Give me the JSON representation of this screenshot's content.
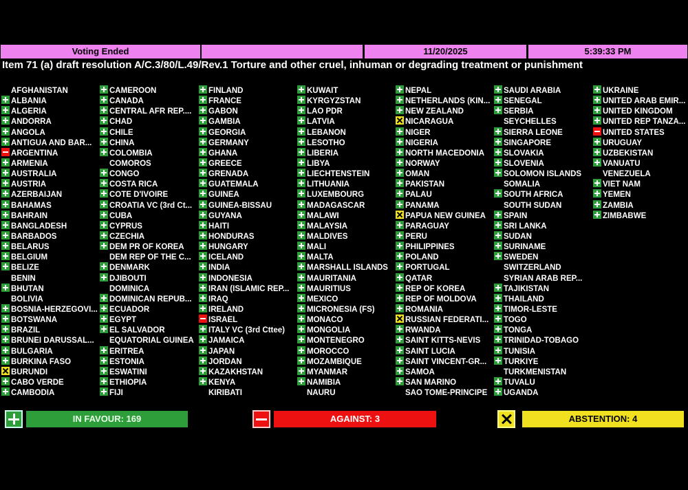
{
  "header": {
    "status": "Voting Ended",
    "blank": "",
    "date": "11/20/2025",
    "time": "5:39:33 PM"
  },
  "title": "Item 71 (a) draft resolution A/C.3/80/L.49/Rev.1 Torture and other cruel, inhuman or degrading treatment or punishment",
  "columns": [
    [
      [
        "AFGHANISTAN",
        "none"
      ],
      [
        "ALBANIA",
        "yes"
      ],
      [
        "ALGERIA",
        "yes"
      ],
      [
        "ANDORRA",
        "yes"
      ],
      [
        "ANGOLA",
        "yes"
      ],
      [
        "ANTIGUA AND BAR...",
        "yes"
      ],
      [
        "ARGENTINA",
        "no"
      ],
      [
        "ARMENIA",
        "yes"
      ],
      [
        "AUSTRALIA",
        "yes"
      ],
      [
        "AUSTRIA",
        "yes"
      ],
      [
        "AZERBAIJAN",
        "yes"
      ],
      [
        "BAHAMAS",
        "yes"
      ],
      [
        "BAHRAIN",
        "yes"
      ],
      [
        "BANGLADESH",
        "yes"
      ],
      [
        "BARBADOS",
        "yes"
      ],
      [
        "BELARUS",
        "yes"
      ],
      [
        "BELGIUM",
        "yes"
      ],
      [
        "BELIZE",
        "yes"
      ],
      [
        "BENIN",
        "none"
      ],
      [
        "BHUTAN",
        "yes"
      ],
      [
        "BOLIVIA",
        "none"
      ],
      [
        "BOSNIA-HERZEGOVI...",
        "yes"
      ],
      [
        "BOTSWANA",
        "yes"
      ],
      [
        "BRAZIL",
        "yes"
      ],
      [
        "BRUNEI DARUSSAL...",
        "yes"
      ],
      [
        "BULGARIA",
        "yes"
      ],
      [
        "BURKINA FASO",
        "yes"
      ],
      [
        "BURUNDI",
        "abs"
      ],
      [
        "CABO VERDE",
        "yes"
      ],
      [
        "CAMBODIA",
        "yes"
      ]
    ],
    [
      [
        "CAMEROON",
        "yes"
      ],
      [
        "CANADA",
        "yes"
      ],
      [
        "CENTRAL AFR REP....",
        "yes"
      ],
      [
        "CHAD",
        "yes"
      ],
      [
        "CHILE",
        "yes"
      ],
      [
        "CHINA",
        "yes"
      ],
      [
        "COLOMBIA",
        "yes"
      ],
      [
        "COMOROS",
        "none"
      ],
      [
        "CONGO",
        "yes"
      ],
      [
        "COSTA RICA",
        "yes"
      ],
      [
        "COTE D'IVOIRE",
        "yes"
      ],
      [
        "CROATIA VC (3rd Ct...",
        "yes"
      ],
      [
        "CUBA",
        "yes"
      ],
      [
        "CYPRUS",
        "yes"
      ],
      [
        "CZECHIA",
        "yes"
      ],
      [
        "DEM PR OF KOREA",
        "yes"
      ],
      [
        "DEM REP OF THE C...",
        "none"
      ],
      [
        "DENMARK",
        "yes"
      ],
      [
        "DJIBOUTI",
        "yes"
      ],
      [
        "DOMINICA",
        "none"
      ],
      [
        "DOMINICAN REPUB...",
        "yes"
      ],
      [
        "ECUADOR",
        "yes"
      ],
      [
        "EGYPT",
        "yes"
      ],
      [
        "EL SALVADOR",
        "yes"
      ],
      [
        "EQUATORIAL GUINEA",
        "none"
      ],
      [
        "ERITREA",
        "yes"
      ],
      [
        "ESTONIA",
        "yes"
      ],
      [
        "ESWATINI",
        "yes"
      ],
      [
        "ETHIOPIA",
        "yes"
      ],
      [
        "FIJI",
        "yes"
      ]
    ],
    [
      [
        "FINLAND",
        "yes"
      ],
      [
        "FRANCE",
        "yes"
      ],
      [
        "GABON",
        "yes"
      ],
      [
        "GAMBIA",
        "yes"
      ],
      [
        "GEORGIA",
        "yes"
      ],
      [
        "GERMANY",
        "yes"
      ],
      [
        "GHANA",
        "yes"
      ],
      [
        "GREECE",
        "yes"
      ],
      [
        "GRENADA",
        "yes"
      ],
      [
        "GUATEMALA",
        "yes"
      ],
      [
        "GUINEA",
        "yes"
      ],
      [
        "GUINEA-BISSAU",
        "yes"
      ],
      [
        "GUYANA",
        "yes"
      ],
      [
        "HAITI",
        "yes"
      ],
      [
        "HONDURAS",
        "yes"
      ],
      [
        "HUNGARY",
        "yes"
      ],
      [
        "ICELAND",
        "yes"
      ],
      [
        "INDIA",
        "yes"
      ],
      [
        "INDONESIA",
        "yes"
      ],
      [
        "IRAN (ISLAMIC REP...",
        "yes"
      ],
      [
        "IRAQ",
        "yes"
      ],
      [
        "IRELAND",
        "yes"
      ],
      [
        "ISRAEL",
        "no"
      ],
      [
        "ITALY VC (3rd Cttee)",
        "yes"
      ],
      [
        "JAMAICA",
        "yes"
      ],
      [
        "JAPAN",
        "yes"
      ],
      [
        "JORDAN",
        "yes"
      ],
      [
        "KAZAKHSTAN",
        "yes"
      ],
      [
        "KENYA",
        "yes"
      ],
      [
        "KIRIBATI",
        "none"
      ]
    ],
    [
      [
        "KUWAIT",
        "yes"
      ],
      [
        "KYRGYZSTAN",
        "yes"
      ],
      [
        "LAO PDR",
        "yes"
      ],
      [
        "LATVIA",
        "yes"
      ],
      [
        "LEBANON",
        "yes"
      ],
      [
        "LESOTHO",
        "yes"
      ],
      [
        "LIBERIA",
        "yes"
      ],
      [
        "LIBYA",
        "yes"
      ],
      [
        "LIECHTENSTEIN",
        "yes"
      ],
      [
        "LITHUANIA",
        "yes"
      ],
      [
        "LUXEMBOURG",
        "yes"
      ],
      [
        "MADAGASCAR",
        "yes"
      ],
      [
        "MALAWI",
        "yes"
      ],
      [
        "MALAYSIA",
        "yes"
      ],
      [
        "MALDIVES",
        "yes"
      ],
      [
        "MALI",
        "yes"
      ],
      [
        "MALTA",
        "yes"
      ],
      [
        "MARSHALL ISLANDS",
        "yes"
      ],
      [
        "MAURITANIA",
        "yes"
      ],
      [
        "MAURITIUS",
        "yes"
      ],
      [
        "MEXICO",
        "yes"
      ],
      [
        "MICRONESIA (FS)",
        "yes"
      ],
      [
        "MONACO",
        "yes"
      ],
      [
        "MONGOLIA",
        "yes"
      ],
      [
        "MONTENEGRO",
        "yes"
      ],
      [
        "MOROCCO",
        "yes"
      ],
      [
        "MOZAMBIQUE",
        "yes"
      ],
      [
        "MYANMAR",
        "yes"
      ],
      [
        "NAMIBIA",
        "yes"
      ],
      [
        "NAURU",
        "none"
      ]
    ],
    [
      [
        "NEPAL",
        "yes"
      ],
      [
        "NETHERLANDS (KIN...",
        "yes"
      ],
      [
        "NEW ZEALAND",
        "yes"
      ],
      [
        "NICARAGUA",
        "abs"
      ],
      [
        "NIGER",
        "yes"
      ],
      [
        "NIGERIA",
        "yes"
      ],
      [
        "NORTH MACEDONIA",
        "yes"
      ],
      [
        "NORWAY",
        "yes"
      ],
      [
        "OMAN",
        "yes"
      ],
      [
        "PAKISTAN",
        "yes"
      ],
      [
        "PALAU",
        "yes"
      ],
      [
        "PANAMA",
        "yes"
      ],
      [
        "PAPUA NEW GUINEA",
        "abs"
      ],
      [
        "PARAGUAY",
        "yes"
      ],
      [
        "PERU",
        "yes"
      ],
      [
        "PHILIPPINES",
        "yes"
      ],
      [
        "POLAND",
        "yes"
      ],
      [
        "PORTUGAL",
        "yes"
      ],
      [
        "QATAR",
        "yes"
      ],
      [
        "REP OF KOREA",
        "yes"
      ],
      [
        "REP OF MOLDOVA",
        "yes"
      ],
      [
        "ROMANIA",
        "yes"
      ],
      [
        "RUSSIAN FEDERATI...",
        "abs"
      ],
      [
        "RWANDA",
        "yes"
      ],
      [
        "SAINT KITTS-NEVIS",
        "yes"
      ],
      [
        "SAINT LUCIA",
        "yes"
      ],
      [
        "SAINT VINCENT-GR...",
        "yes"
      ],
      [
        "SAMOA",
        "yes"
      ],
      [
        "SAN MARINO",
        "yes"
      ],
      [
        "SAO TOME-PRINCIPE",
        "none"
      ]
    ],
    [
      [
        "SAUDI ARABIA",
        "yes"
      ],
      [
        "SENEGAL",
        "yes"
      ],
      [
        "SERBIA",
        "yes"
      ],
      [
        "SEYCHELLES",
        "none"
      ],
      [
        "SIERRA LEONE",
        "yes"
      ],
      [
        "SINGAPORE",
        "yes"
      ],
      [
        "SLOVAKIA",
        "yes"
      ],
      [
        "SLOVENIA",
        "yes"
      ],
      [
        "SOLOMON ISLANDS",
        "yes"
      ],
      [
        "SOMALIA",
        "none"
      ],
      [
        "SOUTH AFRICA",
        "yes"
      ],
      [
        "SOUTH SUDAN",
        "none"
      ],
      [
        "SPAIN",
        "yes"
      ],
      [
        "SRI LANKA",
        "yes"
      ],
      [
        "SUDAN",
        "yes"
      ],
      [
        "SURINAME",
        "yes"
      ],
      [
        "SWEDEN",
        "yes"
      ],
      [
        "SWITZERLAND",
        "none"
      ],
      [
        "SYRIAN ARAB REP...",
        "none"
      ],
      [
        "TAJIKISTAN",
        "yes"
      ],
      [
        "THAILAND",
        "yes"
      ],
      [
        "TIMOR-LESTE",
        "yes"
      ],
      [
        "TOGO",
        "yes"
      ],
      [
        "TONGA",
        "yes"
      ],
      [
        "TRINIDAD-TOBAGO",
        "yes"
      ],
      [
        "TUNISIA",
        "yes"
      ],
      [
        "TURKIYE",
        "yes"
      ],
      [
        "TURKMENISTAN",
        "none"
      ],
      [
        "TUVALU",
        "yes"
      ],
      [
        "UGANDA",
        "yes"
      ]
    ],
    [
      [
        "UKRAINE",
        "yes"
      ],
      [
        "UNITED ARAB EMIR...",
        "yes"
      ],
      [
        "UNITED KINGDOM",
        "yes"
      ],
      [
        "UNITED REP TANZA...",
        "yes"
      ],
      [
        "UNITED STATES",
        "no"
      ],
      [
        "URUGUAY",
        "yes"
      ],
      [
        "UZBEKISTAN",
        "yes"
      ],
      [
        "VANUATU",
        "yes"
      ],
      [
        "VENEZUELA",
        "none"
      ],
      [
        "VIET NAM",
        "yes"
      ],
      [
        "YEMEN",
        "yes"
      ],
      [
        "ZAMBIA",
        "yes"
      ],
      [
        "ZIMBABWE",
        "yes"
      ]
    ]
  ],
  "tally": {
    "in_favour": "IN FAVOUR: 169",
    "against": "AGAINST: 3",
    "abstention": "ABSTENTION: 4"
  },
  "icons": {
    "yes": "plus-icon",
    "no": "minus-icon",
    "abs": "cross-icon"
  },
  "colors": {
    "header_bg": "#ee82ee",
    "favour": "#2e9e3a",
    "against": "#e11111",
    "abstention": "#f0e020"
  }
}
